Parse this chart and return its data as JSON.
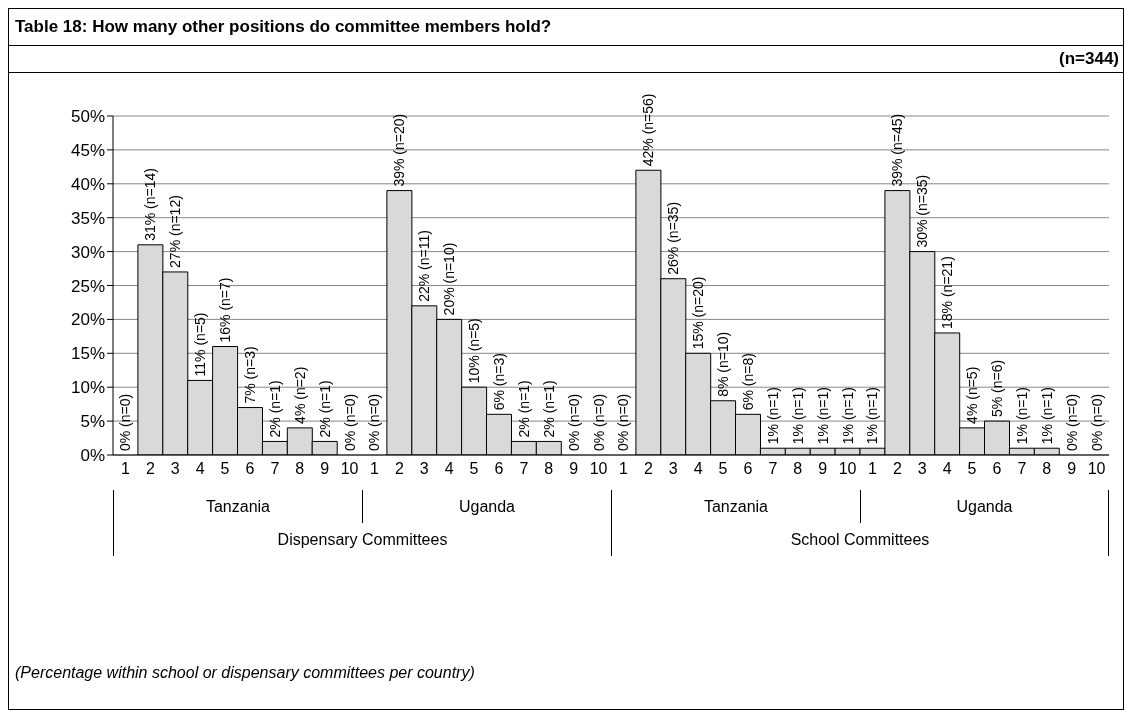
{
  "chart_data": {
    "type": "bar",
    "title": "Table 18: How many other positions do committee members hold?",
    "subtitle": "(n=344)",
    "categories": [
      "1",
      "2",
      "3",
      "4",
      "5",
      "6",
      "7",
      "8",
      "9",
      "10",
      "1",
      "2",
      "3",
      "4",
      "5",
      "6",
      "7",
      "8",
      "9",
      "10",
      "1",
      "2",
      "3",
      "4",
      "5",
      "6",
      "7",
      "8",
      "9",
      "10",
      "1",
      "2",
      "3",
      "4",
      "5",
      "6",
      "7",
      "8",
      "9",
      "10"
    ],
    "values": [
      0,
      31,
      27,
      11,
      16,
      7,
      2,
      4,
      2,
      0,
      0,
      39,
      22,
      20,
      10,
      6,
      2,
      2,
      0,
      0,
      0,
      42,
      26,
      15,
      8,
      6,
      1,
      1,
      1,
      1,
      1,
      39,
      30,
      18,
      4,
      5,
      1,
      1,
      0,
      0
    ],
    "value_labels": [
      "0% (n=0)",
      "31% (n=14)",
      "27% (n=12)",
      "11% (n=5)",
      "16% (n=7)",
      "7% (n=3)",
      "2% (n=1)",
      "4% (n=2)",
      "2% (n=1)",
      "0% (n=0)",
      "0% (n=0)",
      "39% (n=20)",
      "22% (n=11)",
      "20% (n=10)",
      "10% (n=5)",
      "6% (n=3)",
      "2% (n=1)",
      "2% (n=1)",
      "0% (n=0)",
      "0% (n=0)",
      "0% (n=0)",
      "42% (n=56)",
      "26% (n=35)",
      "15% (n=20)",
      "8% (n=10)",
      "6% (n=8)",
      "1% (n=1)",
      "1% (n=1)",
      "1% (n=1)",
      "1% (n=1)",
      "1% (n=1)",
      "39% (n=45)",
      "30% (n=35)",
      "18% (n=21)",
      "4% (n=5)",
      "5% (n=6)",
      "1% (n=1)",
      "1% (n=1)",
      "0% (n=0)",
      "0% (n=0)"
    ],
    "color": "#d9d9d9",
    "ylim": [
      0,
      50
    ],
    "yticks": [
      {
        "value": 0,
        "label": "0%"
      },
      {
        "value": 5,
        "label": "5%"
      },
      {
        "value": 10,
        "label": "10%"
      },
      {
        "value": 15,
        "label": "15%"
      },
      {
        "value": 20,
        "label": "20%"
      },
      {
        "value": 25,
        "label": "25%"
      },
      {
        "value": 30,
        "label": "30%"
      },
      {
        "value": 35,
        "label": "35%"
      },
      {
        "value": 40,
        "label": "40%"
      },
      {
        "value": 45,
        "label": "45%"
      },
      {
        "value": 50,
        "label": "50%"
      }
    ],
    "grid": "y",
    "annotations": [
      "Tanzania",
      "Uganda",
      "Tanzania",
      "Uganda",
      "Dispensary Committees",
      "School Committees",
      "(Percentage within school or dispensary committees per country)"
    ]
  }
}
